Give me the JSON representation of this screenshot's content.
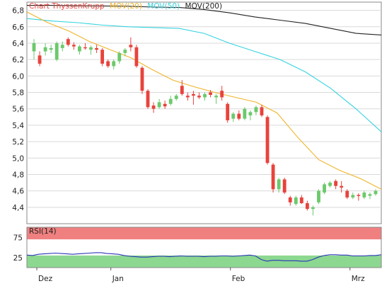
{
  "chart_data": [
    {
      "type": "candlestick",
      "legend": [
        {
          "label": "Chart ThyssenKrupp",
          "color": "#e8433c"
        },
        {
          "label": "MOV(20)",
          "color": "#f0b429"
        },
        {
          "label": "MOV(50)",
          "color": "#35d3e0"
        },
        {
          "label": "MOV(200)",
          "color": "#222222"
        }
      ],
      "ylim": [
        4.2,
        6.9
      ],
      "yticks": [
        "6,8",
        "6,6",
        "6,4",
        "6,2",
        "6,0",
        "5,8",
        "5,6",
        "5,4",
        "5,2",
        "5,0",
        "4,8",
        "4,6",
        "4,4"
      ],
      "ytick_values": [
        6.8,
        6.6,
        6.4,
        6.2,
        6.0,
        5.8,
        5.6,
        5.4,
        5.2,
        5.0,
        4.8,
        4.6,
        4.4
      ],
      "candles": [
        {
          "o": 6.3,
          "h": 6.45,
          "l": 6.2,
          "c": 6.4
        },
        {
          "o": 6.25,
          "h": 6.3,
          "l": 6.12,
          "c": 6.15
        },
        {
          "o": 6.3,
          "h": 6.4,
          "l": 6.25,
          "c": 6.35
        },
        {
          "o": 6.32,
          "h": 6.38,
          "l": 6.28,
          "c": 6.34
        },
        {
          "o": 6.2,
          "h": 6.42,
          "l": 6.18,
          "c": 6.4
        },
        {
          "o": 6.34,
          "h": 6.42,
          "l": 6.3,
          "c": 6.38
        },
        {
          "o": 6.45,
          "h": 6.47,
          "l": 6.36,
          "c": 6.38
        },
        {
          "o": 6.38,
          "h": 6.41,
          "l": 6.32,
          "c": 6.36
        },
        {
          "o": 6.3,
          "h": 6.38,
          "l": 6.26,
          "c": 6.36
        },
        {
          "o": 6.35,
          "h": 6.4,
          "l": 6.32,
          "c": 6.34
        },
        {
          "o": 6.32,
          "h": 6.37,
          "l": 6.26,
          "c": 6.35
        },
        {
          "o": 6.34,
          "h": 6.38,
          "l": 6.28,
          "c": 6.32
        },
        {
          "o": 6.32,
          "h": 6.34,
          "l": 6.12,
          "c": 6.15
        },
        {
          "o": 6.18,
          "h": 6.2,
          "l": 6.1,
          "c": 6.12
        },
        {
          "o": 6.12,
          "h": 6.2,
          "l": 6.08,
          "c": 6.18
        },
        {
          "o": 6.18,
          "h": 6.3,
          "l": 6.15,
          "c": 6.28
        },
        {
          "o": 6.28,
          "h": 6.34,
          "l": 6.24,
          "c": 6.32
        },
        {
          "o": 6.38,
          "h": 6.47,
          "l": 6.3,
          "c": 6.35
        },
        {
          "o": 6.35,
          "h": 6.38,
          "l": 6.1,
          "c": 6.12
        },
        {
          "o": 6.1,
          "h": 6.12,
          "l": 5.78,
          "c": 5.82
        },
        {
          "o": 5.82,
          "h": 5.84,
          "l": 5.6,
          "c": 5.62
        },
        {
          "o": 5.64,
          "h": 5.68,
          "l": 5.55,
          "c": 5.6
        },
        {
          "o": 5.62,
          "h": 5.72,
          "l": 5.6,
          "c": 5.68
        },
        {
          "o": 5.66,
          "h": 5.7,
          "l": 5.6,
          "c": 5.63
        },
        {
          "o": 5.66,
          "h": 5.76,
          "l": 5.64,
          "c": 5.72
        },
        {
          "o": 5.72,
          "h": 5.78,
          "l": 5.7,
          "c": 5.76
        },
        {
          "o": 5.88,
          "h": 5.95,
          "l": 5.76,
          "c": 5.78
        },
        {
          "o": 5.76,
          "h": 5.8,
          "l": 5.7,
          "c": 5.74
        },
        {
          "o": 5.78,
          "h": 5.82,
          "l": 5.65,
          "c": 5.76
        },
        {
          "o": 5.76,
          "h": 5.8,
          "l": 5.72,
          "c": 5.74
        },
        {
          "o": 5.74,
          "h": 5.8,
          "l": 5.7,
          "c": 5.78
        },
        {
          "o": 5.8,
          "h": 5.83,
          "l": 5.74,
          "c": 5.77
        },
        {
          "o": 5.74,
          "h": 5.78,
          "l": 5.66,
          "c": 5.76
        },
        {
          "o": 5.82,
          "h": 5.88,
          "l": 5.7,
          "c": 5.74
        },
        {
          "o": 5.66,
          "h": 5.68,
          "l": 5.43,
          "c": 5.46
        },
        {
          "o": 5.48,
          "h": 5.56,
          "l": 5.44,
          "c": 5.54
        },
        {
          "o": 5.54,
          "h": 5.58,
          "l": 5.46,
          "c": 5.48
        },
        {
          "o": 5.48,
          "h": 5.62,
          "l": 5.46,
          "c": 5.6
        },
        {
          "o": 5.52,
          "h": 5.58,
          "l": 5.46,
          "c": 5.56
        },
        {
          "o": 5.56,
          "h": 5.64,
          "l": 5.52,
          "c": 5.62
        },
        {
          "o": 5.62,
          "h": 5.65,
          "l": 5.5,
          "c": 5.52
        },
        {
          "o": 5.5,
          "h": 5.52,
          "l": 4.92,
          "c": 4.94
        },
        {
          "o": 4.92,
          "h": 4.94,
          "l": 4.58,
          "c": 4.62
        },
        {
          "o": 4.62,
          "h": 4.76,
          "l": 4.58,
          "c": 4.74
        },
        {
          "o": 4.74,
          "h": 4.76,
          "l": 4.56,
          "c": 4.58
        },
        {
          "o": 4.52,
          "h": 4.54,
          "l": 4.42,
          "c": 4.46
        },
        {
          "o": 4.44,
          "h": 4.54,
          "l": 4.42,
          "c": 4.52
        },
        {
          "o": 4.52,
          "h": 4.55,
          "l": 4.44,
          "c": 4.45
        },
        {
          "o": 4.45,
          "h": 4.48,
          "l": 4.36,
          "c": 4.38
        },
        {
          "o": 4.38,
          "h": 4.42,
          "l": 4.3,
          "c": 4.4
        },
        {
          "o": 4.46,
          "h": 4.62,
          "l": 4.44,
          "c": 4.6
        },
        {
          "o": 4.58,
          "h": 4.7,
          "l": 4.56,
          "c": 4.68
        },
        {
          "o": 4.66,
          "h": 4.72,
          "l": 4.64,
          "c": 4.7
        },
        {
          "o": 4.72,
          "h": 4.74,
          "l": 4.62,
          "c": 4.66
        },
        {
          "o": 4.66,
          "h": 4.72,
          "l": 4.58,
          "c": 4.64
        },
        {
          "o": 4.6,
          "h": 4.62,
          "l": 4.5,
          "c": 4.52
        },
        {
          "o": 4.52,
          "h": 4.58,
          "l": 4.5,
          "c": 4.55
        },
        {
          "o": 4.55,
          "h": 4.57,
          "l": 4.48,
          "c": 4.54
        },
        {
          "o": 4.52,
          "h": 4.6,
          "l": 4.5,
          "c": 4.58
        },
        {
          "o": 4.54,
          "h": 4.58,
          "l": 4.5,
          "c": 4.56
        },
        {
          "o": 4.56,
          "h": 4.62,
          "l": 4.54,
          "c": 4.6
        }
      ],
      "ma200": [
        6.86,
        6.86,
        6.855,
        6.853,
        6.85,
        6.84,
        6.835,
        6.81,
        6.77,
        6.72,
        6.68,
        6.64,
        6.58,
        6.52,
        6.5
      ],
      "ma50": [
        6.7,
        6.67,
        6.65,
        6.62,
        6.6,
        6.59,
        6.58,
        6.52,
        6.4,
        6.3,
        6.2,
        6.05,
        5.85,
        5.6,
        5.32
      ],
      "ma20": [
        6.78,
        6.65,
        6.55,
        6.42,
        6.32,
        6.22,
        6.08,
        5.95,
        5.87,
        5.8,
        5.74,
        5.68,
        5.55,
        5.25,
        4.98,
        4.85,
        4.75,
        4.62
      ],
      "x_axis_labels": [
        {
          "label": "Dez",
          "index": 1
        },
        {
          "label": "Jan",
          "index": 14
        },
        {
          "label": "Feb",
          "index": 35
        },
        {
          "label": "Mrz",
          "index": 56
        }
      ],
      "up_color": "#6cc96c",
      "down_color": "#e8433c"
    },
    {
      "type": "line",
      "title": "RSI(14)",
      "ylim": [
        0,
        100
      ],
      "yticks": [
        "75",
        "25"
      ],
      "ytick_values": [
        75,
        25
      ],
      "overbought": 70,
      "oversold": 30,
      "values": [
        31,
        30,
        33,
        34,
        35,
        36,
        35,
        34,
        33,
        34,
        35,
        36,
        37,
        37,
        35,
        34,
        33,
        30,
        28,
        27,
        26,
        26,
        27,
        28,
        28,
        27,
        28,
        29,
        28,
        28,
        28,
        27,
        28,
        28,
        29,
        29,
        28,
        29,
        30,
        31,
        29,
        20,
        16,
        18,
        18,
        17,
        17,
        17,
        16,
        16,
        20,
        26,
        30,
        32,
        32,
        31,
        31,
        29,
        29,
        29,
        30,
        30,
        32
      ],
      "line_color": "#2a35b8",
      "band_colors": {
        "overbought": "#f08080",
        "middle": "#ffffff",
        "oversold": "#8cd890"
      }
    }
  ]
}
